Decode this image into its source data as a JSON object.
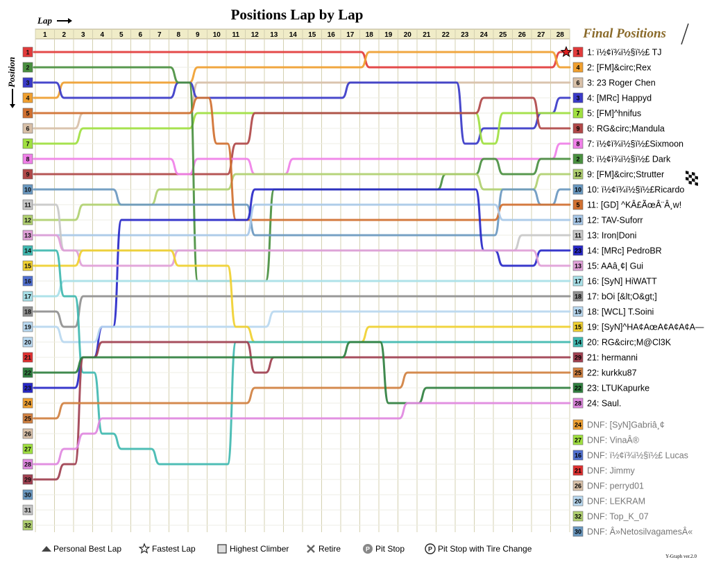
{
  "chart_data": {
    "type": "line",
    "title": "Positions Lap by Lap",
    "xlabel": "Lap",
    "ylabel": "Position",
    "x_ticks": [
      1,
      2,
      3,
      4,
      5,
      6,
      7,
      8,
      9,
      10,
      11,
      12,
      13,
      14,
      15,
      16,
      17,
      18,
      19,
      20,
      21,
      22,
      23,
      24,
      25,
      26,
      27,
      28
    ],
    "y_ticks": [
      1,
      2,
      3,
      4,
      5,
      6,
      7,
      8,
      9,
      10,
      11,
      12,
      13,
      14,
      15,
      16,
      17,
      18,
      19,
      20,
      21,
      22,
      23,
      24,
      25,
      26,
      27,
      28,
      29,
      30,
      31,
      32
    ],
    "final_positions_title": "Final Positions",
    "grid": true,
    "series": [
      {
        "name": "1: ï½¢ï¾ï½§ï½£ TJ",
        "start": 1,
        "color": "#e23b3b",
        "positions": [
          1,
          1,
          1,
          1,
          1,
          1,
          1,
          1,
          1,
          1,
          1,
          1,
          1,
          1,
          1,
          1,
          1,
          2,
          2,
          2,
          2,
          2,
          2,
          2,
          2,
          2,
          2,
          1
        ]
      },
      {
        "name": "2: [FM]&circ;Rex",
        "start": 4,
        "color": "#f0a030",
        "positions": [
          4,
          3,
          3,
          3,
          3,
          3,
          3,
          3,
          2,
          2,
          2,
          2,
          2,
          2,
          2,
          2,
          2,
          1,
          1,
          1,
          1,
          1,
          1,
          1,
          1,
          1,
          1,
          2
        ]
      },
      {
        "name": "3: 23 Roger Chen",
        "start": 6,
        "color": "#d8c0a8",
        "positions": [
          6,
          6,
          5,
          5,
          5,
          5,
          5,
          5,
          3,
          3,
          3,
          3,
          3,
          3,
          3,
          3,
          3,
          3,
          3,
          3,
          3,
          3,
          3,
          3,
          3,
          3,
          3,
          3
        ]
      },
      {
        "name": "4: [MRc] Happyd",
        "start": 3,
        "color": "#3a3ac8",
        "positions": [
          3,
          4,
          4,
          4,
          4,
          4,
          4,
          3,
          4,
          4,
          4,
          4,
          4,
          4,
          4,
          4,
          3,
          3,
          3,
          3,
          3,
          3,
          7,
          6,
          6,
          6,
          5,
          4
        ]
      },
      {
        "name": "5: [FM]^hnifus",
        "start": 7,
        "color": "#a0e040",
        "positions": [
          7,
          7,
          6,
          6,
          6,
          6,
          6,
          6,
          5,
          5,
          5,
          5,
          5,
          5,
          5,
          5,
          5,
          5,
          5,
          5,
          5,
          5,
          5,
          7,
          5,
          5,
          5,
          5
        ]
      },
      {
        "name": "6: RG&circ;Mandula",
        "start": 9,
        "color": "#b04848",
        "positions": [
          9,
          9,
          9,
          9,
          9,
          9,
          9,
          9,
          9,
          9,
          7,
          5,
          5,
          5,
          5,
          5,
          5,
          5,
          5,
          5,
          5,
          5,
          5,
          4,
          4,
          4,
          6,
          6
        ]
      },
      {
        "name": "7: ï½¢ï¾ï½§ï½£Sixmoon",
        "start": 8,
        "color": "#f080e8",
        "positions": [
          8,
          8,
          8,
          8,
          8,
          8,
          8,
          9,
          8,
          8,
          8,
          9,
          9,
          8,
          8,
          8,
          8,
          8,
          8,
          8,
          8,
          8,
          8,
          8,
          8,
          8,
          8,
          7
        ]
      },
      {
        "name": "8: ï½¢ï¾ï½§ï½£ Dark",
        "start": 2,
        "color": "#4a9040",
        "positions": [
          2,
          2,
          2,
          2,
          2,
          2,
          2,
          3,
          16,
          16,
          16,
          16,
          10,
          10,
          10,
          10,
          10,
          10,
          10,
          10,
          10,
          9,
          9,
          8,
          9,
          9,
          8,
          8
        ]
      },
      {
        "name": "9: [FM]&circ;Strutter",
        "start": 12,
        "color": "#b0d070",
        "positions": [
          12,
          12,
          11,
          11,
          11,
          11,
          10,
          10,
          10,
          10,
          9,
          9,
          9,
          9,
          9,
          9,
          9,
          9,
          9,
          9,
          9,
          9,
          9,
          10,
          10,
          10,
          9,
          9
        ]
      },
      {
        "name": "10: ï½¢ï¾ï½§ï½£Ricardo",
        "start": 10,
        "color": "#6a98c0",
        "positions": [
          10,
          10,
          10,
          10,
          11,
          11,
          11,
          11,
          11,
          11,
          11,
          13,
          13,
          13,
          13,
          13,
          13,
          13,
          13,
          13,
          13,
          13,
          13,
          13,
          10,
          10,
          11,
          10
        ]
      },
      {
        "name": "11: [GD] ^KÂ£ÃœÂ¨Â¸w!",
        "start": 5,
        "color": "#d07030",
        "positions": [
          5,
          5,
          5,
          5,
          5,
          5,
          5,
          5,
          4,
          7,
          12,
          12,
          12,
          12,
          12,
          12,
          12,
          12,
          12,
          12,
          12,
          12,
          12,
          12,
          11,
          11,
          11,
          11
        ]
      },
      {
        "name": "12: TAV-Suforr",
        "start": 13,
        "color": "#a8c8e8",
        "positions": [
          13,
          13,
          13,
          13,
          13,
          13,
          13,
          13,
          13,
          13,
          13,
          11,
          11,
          11,
          11,
          11,
          11,
          11,
          11,
          11,
          11,
          11,
          11,
          11,
          12,
          12,
          12,
          12
        ]
      },
      {
        "name": "13: Iron|Doni",
        "start": 11,
        "color": "#c8c8c8",
        "positions": [
          11,
          14,
          14,
          14,
          14,
          14,
          14,
          14,
          14,
          14,
          14,
          14,
          14,
          14,
          14,
          14,
          14,
          14,
          14,
          14,
          14,
          14,
          14,
          14,
          14,
          13,
          13,
          13
        ]
      },
      {
        "name": "14: [MRc] PedroBR",
        "start": 23,
        "color": "#2828c8",
        "positions": [
          23,
          23,
          21,
          19,
          12,
          12,
          12,
          12,
          12,
          12,
          12,
          10,
          10,
          10,
          10,
          10,
          10,
          10,
          10,
          10,
          10,
          10,
          10,
          14,
          15,
          15,
          14,
          14
        ]
      },
      {
        "name": "15: AAâ¸¢| Gui",
        "start": 13,
        "color": "#e0a0d8",
        "positions": [
          13,
          14,
          15,
          15,
          15,
          15,
          15,
          14,
          14,
          14,
          14,
          14,
          14,
          14,
          14,
          14,
          14,
          14,
          14,
          14,
          14,
          14,
          14,
          14,
          14,
          14,
          15,
          15
        ]
      },
      {
        "name": "16: [SyN] HiWATT",
        "start": 17,
        "color": "#a8e0e8",
        "positions": [
          17,
          16,
          16,
          16,
          16,
          16,
          16,
          16,
          16,
          16,
          16,
          16,
          16,
          16,
          16,
          16,
          16,
          16,
          16,
          16,
          16,
          16,
          16,
          16,
          16,
          16,
          16,
          16
        ]
      },
      {
        "name": "17: bOi [&lt;O&gt;]",
        "start": 18,
        "color": "#909090",
        "positions": [
          18,
          19,
          17,
          17,
          17,
          17,
          17,
          17,
          17,
          17,
          17,
          17,
          17,
          17,
          17,
          17,
          17,
          17,
          17,
          17,
          17,
          17,
          17,
          17,
          17,
          17,
          17,
          17
        ]
      },
      {
        "name": "18: [WCL] T.Soini",
        "start": 19,
        "color": "#b8d8f0",
        "positions": [
          19,
          20,
          20,
          19,
          19,
          19,
          19,
          19,
          19,
          19,
          19,
          19,
          18,
          18,
          18,
          18,
          18,
          18,
          18,
          18,
          18,
          18,
          18,
          18,
          18,
          18,
          18,
          18
        ]
      },
      {
        "name": "19: [SyN]^HA¢AœA¢A¢A¢A—",
        "start": 15,
        "color": "#f0d030",
        "positions": [
          15,
          15,
          14,
          14,
          14,
          14,
          14,
          15,
          15,
          15,
          19,
          20,
          20,
          20,
          20,
          20,
          20,
          19,
          19,
          19,
          19,
          19,
          19,
          19,
          19,
          19,
          19,
          19
        ]
      },
      {
        "name": "20: RG&circ;M@Cl3K",
        "start": 14,
        "color": "#40b8b0",
        "positions": [
          14,
          17,
          22,
          26,
          27,
          27,
          28,
          28,
          28,
          28,
          20,
          20,
          20,
          20,
          20,
          20,
          20,
          20,
          20,
          20,
          20,
          20,
          20,
          20,
          20,
          20,
          20,
          20
        ]
      },
      {
        "name": "21: hermanni",
        "start": 29,
        "color": "#a04050",
        "positions": [
          29,
          28,
          21,
          20,
          20,
          20,
          20,
          20,
          20,
          20,
          20,
          22,
          21,
          21,
          21,
          21,
          21,
          21,
          21,
          21,
          21,
          21,
          21,
          21,
          21,
          21,
          21,
          21
        ]
      },
      {
        "name": "22: kurkku87",
        "start": 25,
        "color": "#d08040",
        "positions": [
          25,
          24,
          24,
          24,
          24,
          24,
          24,
          24,
          24,
          24,
          24,
          23,
          23,
          23,
          23,
          23,
          23,
          23,
          23,
          22,
          22,
          22,
          22,
          22,
          22,
          22,
          22,
          22
        ]
      },
      {
        "name": "23: LTUKapurke",
        "start": 22,
        "color": "#308040",
        "positions": [
          22,
          22,
          21,
          21,
          21,
          21,
          21,
          21,
          21,
          21,
          21,
          21,
          21,
          21,
          21,
          21,
          20,
          20,
          24,
          24,
          23,
          23,
          23,
          23,
          23,
          23,
          23,
          23
        ]
      },
      {
        "name": "24: Saul.",
        "start": 28,
        "color": "#e088e0",
        "positions": [
          28,
          27,
          26,
          25,
          25,
          25,
          25,
          25,
          25,
          25,
          25,
          25,
          25,
          25,
          25,
          25,
          25,
          25,
          25,
          24,
          24,
          24,
          24,
          24,
          24,
          24,
          24,
          24
        ]
      }
    ],
    "dnf": [
      {
        "label": "DNF: [SyN]Gabriâ¸¢",
        "badge": "24",
        "color": "#f0a030"
      },
      {
        "label": "DNF: VinaÂ®",
        "badge": "27",
        "color": "#a0e040"
      },
      {
        "label": "DNF: ï½¢ï¾ï½§ï½£ Lucas",
        "badge": "16",
        "color": "#5070d0"
      },
      {
        "label": "DNF: Jimmy",
        "badge": "21",
        "color": "#e03030"
      },
      {
        "label": "DNF: perryd01",
        "badge": "26",
        "color": "#d8c0a8"
      },
      {
        "label": "DNF: LEKRAM",
        "badge": "20",
        "color": "#b8d8f0"
      },
      {
        "label": "DNF: Top_K_07",
        "badge": "32",
        "color": "#b0d070"
      },
      {
        "label": "DNF: Â»NetosilvagamesÂ«",
        "badge": "30",
        "color": "#6a98c0"
      }
    ],
    "legend": [
      {
        "icon": "triangle",
        "label": "Personal Best Lap"
      },
      {
        "icon": "star",
        "label": "Fastest Lap"
      },
      {
        "icon": "square",
        "label": "Highest Climber"
      },
      {
        "icon": "cross",
        "label": "Retire"
      },
      {
        "icon": "pit",
        "label": "Pit Stop"
      },
      {
        "icon": "pit-ring",
        "label": "Pit Stop with Tire Change"
      }
    ],
    "version": "Y-Graph ver.2.0",
    "pit_icon_letter": "P"
  },
  "left_badge_colors": [
    "#e23b3b",
    "#4a9040",
    "#3a3ac8",
    "#f0a030",
    "#d07030",
    "#d8c0a8",
    "#a0e040",
    "#f080e8",
    "#b04848",
    "#6a98c0",
    "#c8c8c8",
    "#b0d070",
    "#e0a0d8",
    "#40b8b0",
    "#f0d030",
    "#5070d0",
    "#a8e0e8",
    "#909090",
    "#b8d8f0",
    "#b8d8f0",
    "#e03030",
    "#308040",
    "#2828c8",
    "#f0a030",
    "#d08040",
    "#d8c0a8",
    "#a0e040",
    "#e088e0",
    "#a04050",
    "#6a98c0",
    "#c8c8c8",
    "#b0d070"
  ]
}
